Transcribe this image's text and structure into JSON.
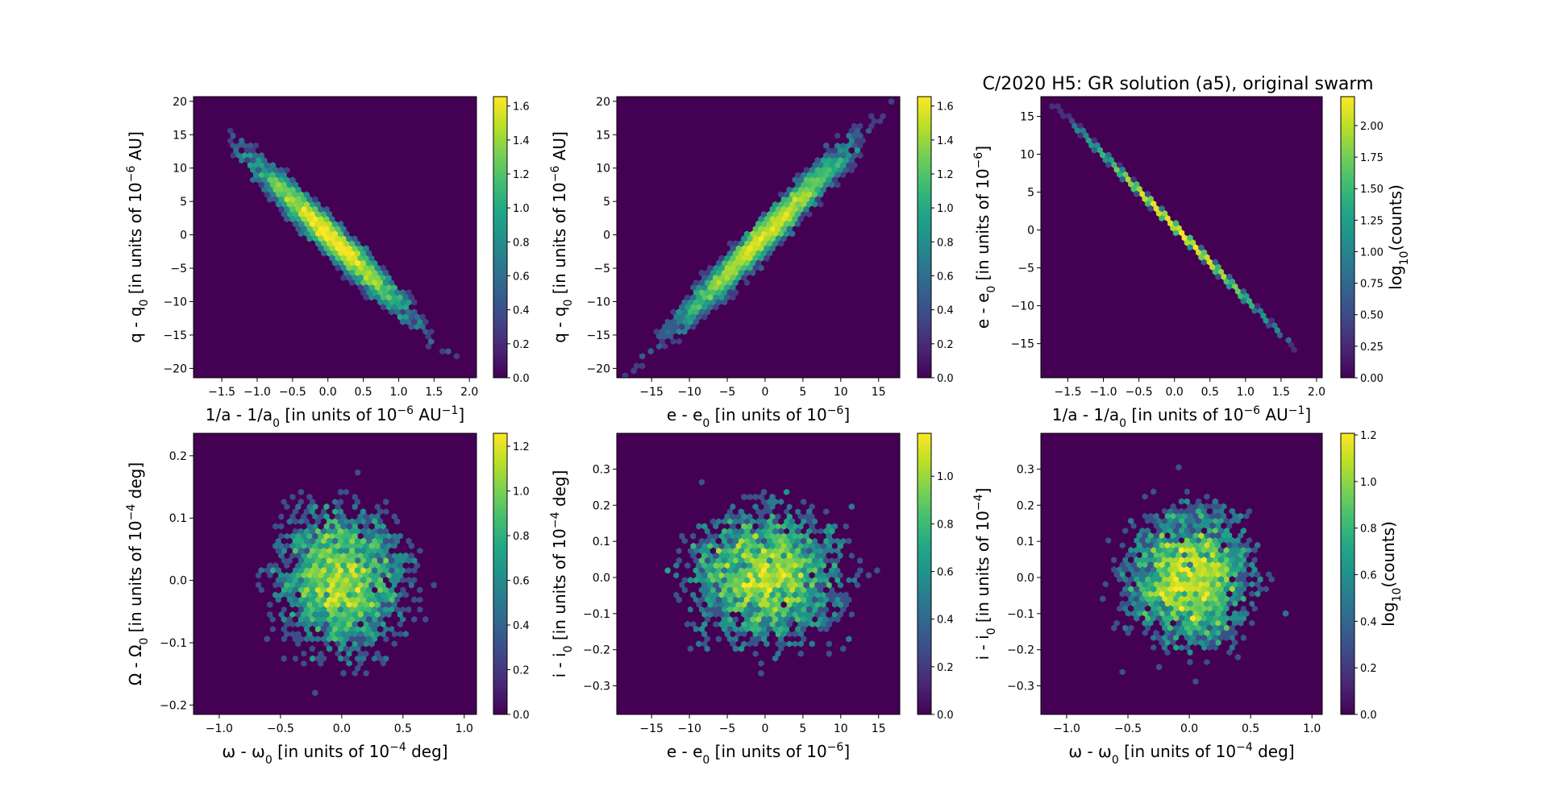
{
  "title": "C/2020 H5: GR solution (a5), original swarm",
  "colormap": "viridis",
  "chart_data": [
    {
      "type": "hexbin",
      "xlabel": [
        [
          "1/a - 1/a",
          ""
        ],
        [
          "0",
          "sub"
        ],
        [
          " [in units of 10",
          ""
        ],
        [
          "−6",
          "sup"
        ],
        [
          " AU",
          ""
        ],
        [
          "−1",
          "sup"
        ],
        [
          "]",
          ""
        ]
      ],
      "ylabel": [
        [
          "q - q",
          ""
        ],
        [
          "0",
          "sub"
        ],
        [
          " [in units of 10",
          ""
        ],
        [
          "−6",
          "sup"
        ],
        [
          " AU]",
          ""
        ]
      ],
      "xlim": [
        -1.9,
        2.1
      ],
      "ylim": [
        -21.4,
        20.7
      ],
      "xticks": [
        "−1.5",
        "−1.0",
        "−0.5",
        "0.0",
        "0.5",
        "1.0",
        "1.5",
        "2.0"
      ],
      "yticks": [
        "−20",
        "−15",
        "−10",
        "−5",
        "0",
        "5",
        "10",
        "15",
        "20"
      ],
      "colorbar": {
        "label": [],
        "range": [
          0,
          1.655
        ],
        "ticks": [
          "0.0",
          "0.2",
          "0.4",
          "0.6",
          "0.8",
          "1.0",
          "1.2",
          "1.4",
          "1.6"
        ]
      }
    },
    {
      "type": "hexbin",
      "xlabel": [
        [
          "e - e",
          ""
        ],
        [
          "0",
          "sub"
        ],
        [
          " [in units of 10",
          ""
        ],
        [
          "−6",
          "sup"
        ],
        [
          "]",
          ""
        ]
      ],
      "ylabel": [
        [
          "q - q",
          ""
        ],
        [
          "0",
          "sub"
        ],
        [
          " [in units of 10",
          ""
        ],
        [
          "−6",
          "sup"
        ],
        [
          " AU]",
          ""
        ]
      ],
      "xlim": [
        -19.6,
        17.8
      ],
      "ylim": [
        -21.4,
        20.7
      ],
      "xticks": [
        "−15",
        "−10",
        "−5",
        "0",
        "5",
        "10",
        "15"
      ],
      "yticks": [
        "−20",
        "−15",
        "−10",
        "−5",
        "0",
        "5",
        "10",
        "15",
        "20"
      ],
      "colorbar": {
        "label": [],
        "range": [
          0,
          1.655
        ],
        "ticks": [
          "0.0",
          "0.2",
          "0.4",
          "0.6",
          "0.8",
          "1.0",
          "1.2",
          "1.4",
          "1.6"
        ]
      }
    },
    {
      "type": "hexbin",
      "xlabel": [
        [
          "1/a - 1/a",
          ""
        ],
        [
          "0",
          "sub"
        ],
        [
          " [in units of 10",
          ""
        ],
        [
          "−6",
          "sup"
        ],
        [
          " AU",
          ""
        ],
        [
          "−1",
          "sup"
        ],
        [
          "]",
          ""
        ]
      ],
      "ylabel": [
        [
          "e - e",
          ""
        ],
        [
          "0",
          "sub"
        ],
        [
          " [in units of 10",
          ""
        ],
        [
          "−6",
          "sup"
        ],
        [
          "]",
          ""
        ]
      ],
      "xlim": [
        -1.88,
        2.08
      ],
      "ylim": [
        -19.5,
        17.6
      ],
      "xticks": [
        "−1.5",
        "−1.0",
        "−0.5",
        "0.0",
        "0.5",
        "1.0",
        "1.5",
        "2.0"
      ],
      "yticks": [
        "−15",
        "−10",
        "−5",
        "0",
        "5",
        "10",
        "15"
      ],
      "colorbar": {
        "label": [
          [
            "log",
            ""
          ],
          [
            "10",
            "sub"
          ],
          [
            "(counts)",
            ""
          ]
        ],
        "range": [
          0,
          2.23
        ],
        "ticks": [
          "0.00",
          "0.25",
          "0.50",
          "0.75",
          "1.00",
          "1.25",
          "1.50",
          "1.75",
          "2.00"
        ]
      }
    },
    {
      "type": "hexbin",
      "xlabel": [
        [
          "ω - ω",
          ""
        ],
        [
          "0",
          "sub"
        ],
        [
          " [in units of 10",
          ""
        ],
        [
          "−4",
          "sup"
        ],
        [
          " deg]",
          ""
        ]
      ],
      "ylabel": [
        [
          "Ω - Ω",
          ""
        ],
        [
          "0",
          "sub"
        ],
        [
          " [in units of 10",
          ""
        ],
        [
          "−4",
          "sup"
        ],
        [
          " deg]",
          ""
        ]
      ],
      "xlim": [
        -1.21,
        1.1
      ],
      "ylim": [
        -0.215,
        0.236
      ],
      "xticks": [
        "−1.0",
        "−0.5",
        "0.0",
        "0.5",
        "1.0"
      ],
      "yticks": [
        "−0.2",
        "−0.1",
        "0.0",
        "0.1",
        "0.2"
      ],
      "colorbar": {
        "label": [],
        "range": [
          0,
          1.258
        ],
        "ticks": [
          "0.0",
          "0.2",
          "0.4",
          "0.6",
          "0.8",
          "1.0",
          "1.2"
        ]
      }
    },
    {
      "type": "hexbin",
      "xlabel": [
        [
          "e - e",
          ""
        ],
        [
          "0",
          "sub"
        ],
        [
          " [in units of 10",
          ""
        ],
        [
          "−6",
          "sup"
        ],
        [
          "]",
          ""
        ]
      ],
      "ylabel": [
        [
          "i - i",
          ""
        ],
        [
          "0",
          "sub"
        ],
        [
          " [in units of 10",
          ""
        ],
        [
          "−4",
          "sup"
        ],
        [
          " deg]",
          ""
        ]
      ],
      "xlim": [
        -19.6,
        17.8
      ],
      "ylim": [
        -0.379,
        0.399
      ],
      "xticks": [
        "−15",
        "−10",
        "−5",
        "0",
        "5",
        "10",
        "15"
      ],
      "yticks": [
        "−0.3",
        "−0.2",
        "−0.1",
        "0.0",
        "0.1",
        "0.2",
        "0.3"
      ],
      "colorbar": {
        "label": [],
        "range": [
          0,
          1.18
        ],
        "ticks": [
          "0.0",
          "0.2",
          "0.4",
          "0.6",
          "0.8",
          "1.0"
        ]
      }
    },
    {
      "type": "hexbin",
      "xlabel": [
        [
          "ω - ω",
          ""
        ],
        [
          "0",
          "sub"
        ],
        [
          " [in units of 10",
          ""
        ],
        [
          "−4",
          "sup"
        ],
        [
          " deg]",
          ""
        ]
      ],
      "ylabel": [
        [
          "i - i",
          ""
        ],
        [
          "0",
          "sub"
        ],
        [
          " [in units of 10",
          ""
        ],
        [
          "−4",
          "sup"
        ],
        [
          "]",
          ""
        ]
      ],
      "xlim": [
        -1.21,
        1.084
      ],
      "ylim": [
        -0.379,
        0.399
      ],
      "xticks": [
        "−1.0",
        "−0.5",
        "0.0",
        "0.5",
        "1.0"
      ],
      "yticks": [
        "−0.3",
        "−0.2",
        "−0.1",
        "0.0",
        "0.1",
        "0.2",
        "0.3"
      ],
      "colorbar": {
        "label": [
          [
            "log",
            ""
          ],
          [
            "10",
            "sub"
          ],
          [
            "(counts)",
            ""
          ]
        ],
        "range": [
          0,
          1.207
        ],
        "ticks": [
          "0.0",
          "0.2",
          "0.4",
          "0.6",
          "0.8",
          "1.0",
          "1.2"
        ]
      }
    }
  ]
}
